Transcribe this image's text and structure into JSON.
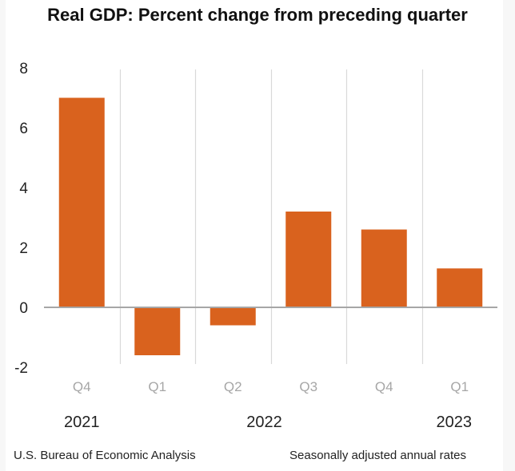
{
  "chart_data": {
    "type": "bar",
    "title": "Real GDP:  Percent change from preceding quarter",
    "xlabel": "",
    "ylabel": "",
    "categories": [
      "Q4",
      "Q1",
      "Q2",
      "Q3",
      "Q4",
      "Q1"
    ],
    "years": [
      {
        "label": "2021",
        "position": "under-Q4-2021"
      },
      {
        "label": "2022",
        "position": "center-of-2022"
      },
      {
        "label": "2023",
        "position": "under-Q1-2023"
      }
    ],
    "category_years": [
      "2021",
      "2022",
      "2022",
      "2022",
      "2022",
      "2023"
    ],
    "values": [
      7.0,
      -1.6,
      -0.6,
      3.2,
      2.6,
      1.3
    ],
    "ylim": [
      -2,
      8
    ],
    "yticks": [
      8,
      6,
      4,
      2,
      0,
      -2
    ],
    "ytick_labels": [
      "8",
      "6",
      "4",
      "2",
      "0",
      "-2"
    ],
    "grid": "vertical separators between categories",
    "legend": "none",
    "bar_color": "#d9621e",
    "source": "U.S. Bureau of Economic Analysis",
    "note": "Seasonally adjusted annual rates"
  }
}
